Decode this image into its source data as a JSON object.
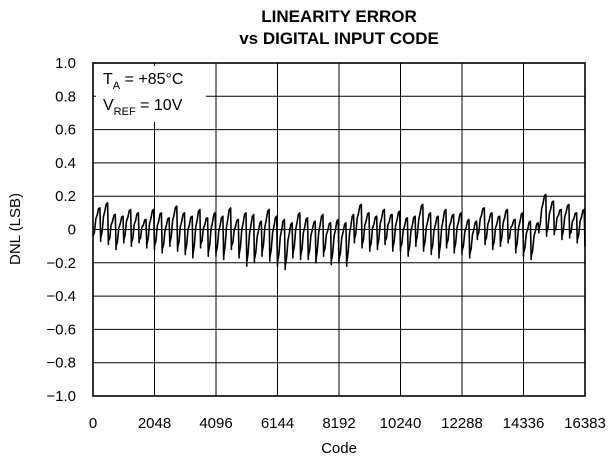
{
  "chart_data": {
    "type": "line",
    "title_line1": "LINEARITY ERROR",
    "title_line2": "vs DIGITAL INPUT CODE",
    "xlabel": "Code",
    "ylabel": "DNL (LSB)",
    "xlim": [
      0,
      16383
    ],
    "ylim": [
      -1.0,
      1.0
    ],
    "x_ticks": [
      0,
      2048,
      4096,
      6144,
      8192,
      10240,
      12288,
      14336,
      16383
    ],
    "x_tick_labels": [
      "0",
      "2048",
      "4096",
      "6144",
      "8192",
      "10240",
      "12288",
      "14336",
      "16383"
    ],
    "y_ticks": [
      1.0,
      0.8,
      0.6,
      0.4,
      0.2,
      0,
      -0.2,
      -0.4,
      -0.6,
      -0.8,
      -1.0
    ],
    "y_tick_labels": [
      "1.0",
      "0.8",
      "0.6",
      "0.4",
      "0.2",
      "0",
      "−0.2",
      "−0.4",
      "−0.6",
      "−0.8",
      "−1.0"
    ],
    "grid": true,
    "annotations": {
      "ta_main": "T",
      "ta_sub": "A",
      "ta_value": " = +85°C",
      "vref_main": "V",
      "vref_sub": "REF",
      "vref_value": " = 10V"
    },
    "series": [
      {
        "x": [
          0,
          256,
          512,
          768,
          1024,
          1280,
          1536,
          1792,
          2048,
          2304,
          2560,
          2816,
          3072,
          3328,
          3584,
          3840,
          4096,
          4352,
          4608,
          4864,
          5120,
          5376,
          5632,
          5888,
          6144,
          6400,
          6656,
          6912,
          7168,
          7424,
          7680,
          7936,
          8192,
          8448,
          8704,
          8960,
          9216,
          9472,
          9728,
          9984,
          10240,
          10496,
          10752,
          11008,
          11264,
          11520,
          11776,
          12032,
          12288,
          12544,
          12800,
          13056,
          13312,
          13568,
          13824,
          14080,
          14336,
          14592,
          14848,
          15104,
          15360,
          15616,
          15872,
          16128,
          16383
        ],
        "ymin": [
          -0.06,
          -0.07,
          -0.09,
          -0.12,
          -0.08,
          -0.1,
          -0.08,
          -0.11,
          -0.12,
          -0.14,
          -0.1,
          -0.13,
          -0.15,
          -0.17,
          -0.11,
          -0.16,
          -0.16,
          -0.18,
          -0.12,
          -0.17,
          -0.22,
          -0.2,
          -0.16,
          -0.19,
          -0.22,
          -0.24,
          -0.17,
          -0.18,
          -0.18,
          -0.2,
          -0.16,
          -0.21,
          -0.2,
          -0.22,
          -0.08,
          -0.11,
          -0.13,
          -0.12,
          -0.09,
          -0.13,
          -0.13,
          -0.16,
          -0.1,
          -0.13,
          -0.15,
          -0.17,
          -0.11,
          -0.14,
          -0.15,
          -0.17,
          -0.06,
          -0.09,
          -0.12,
          -0.1,
          -0.08,
          -0.14,
          -0.16,
          -0.18,
          -0.02,
          -0.04,
          -0.03,
          -0.06,
          -0.05,
          -0.08,
          -0.1
        ],
        "ymax": [
          0.13,
          0.16,
          0.09,
          0.08,
          0.12,
          0.1,
          0.06,
          0.12,
          0.1,
          0.07,
          0.14,
          0.1,
          0.08,
          0.12,
          0.07,
          0.1,
          0.08,
          0.13,
          0.06,
          0.1,
          0.09,
          0.05,
          0.12,
          0.08,
          0.06,
          0.04,
          0.1,
          0.07,
          0.05,
          0.09,
          0.04,
          0.06,
          0.04,
          0.09,
          0.15,
          0.1,
          0.08,
          0.12,
          0.09,
          0.11,
          0.07,
          0.08,
          0.15,
          0.1,
          0.08,
          0.12,
          0.09,
          0.1,
          0.06,
          0.05,
          0.13,
          0.1,
          0.08,
          0.12,
          0.06,
          0.1,
          0.05,
          0.04,
          0.21,
          0.17,
          0.12,
          0.15,
          0.1,
          0.12,
          0.02
        ]
      }
    ]
  }
}
